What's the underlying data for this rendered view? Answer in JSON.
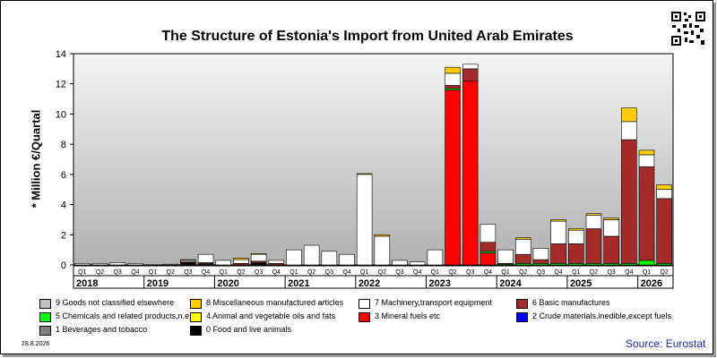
{
  "title": "The Structure of Estonia's Import from United Arab Emirates",
  "ylabel": "* Million €/Quartal",
  "date_stamp": "28.8.2026",
  "source": "Source: Eurostat",
  "qr_icon": "qr-code-icon",
  "chart_data": {
    "type": "bar",
    "stacked": true,
    "ylim": [
      0,
      14
    ],
    "yticks": [
      "0",
      "2",
      "4",
      "6",
      "8",
      "10",
      "12",
      "14"
    ],
    "grid": false,
    "legend_position": "bottom",
    "categories": [
      "Q1",
      "Q2",
      "Q3",
      "Q4",
      "Q1",
      "Q2",
      "Q3",
      "Q4",
      "Q1",
      "Q2",
      "Q3",
      "Q4",
      "Q1",
      "Q2",
      "Q3",
      "Q4",
      "Q1",
      "Q2",
      "Q3",
      "Q4",
      "Q1",
      "Q2",
      "Q3",
      "Q4",
      "Q1",
      "Q2",
      "Q3",
      "Q4",
      "Q1",
      "Q2",
      "Q3",
      "Q4",
      "Q1",
      "Q2"
    ],
    "years": [
      "2018",
      "2019",
      "2020",
      "2021",
      "2022",
      "2023",
      "2024",
      "2025",
      "2026"
    ],
    "series": [
      {
        "name": "0 Food and live animals",
        "color": "#000000",
        "values": [
          0,
          0,
          0,
          0,
          0,
          0,
          0.1,
          0,
          0,
          0,
          0.1,
          0,
          0,
          0,
          0,
          0,
          0,
          0,
          0,
          0,
          0,
          0,
          0,
          0,
          0,
          0,
          0,
          0,
          0,
          0,
          0,
          0,
          0,
          0
        ]
      },
      {
        "name": "1 Beverages and tobacco",
        "color": "#808080",
        "values": [
          0,
          0,
          0,
          0,
          0,
          0,
          0,
          0,
          0,
          0,
          0,
          0,
          0,
          0,
          0,
          0,
          0,
          0,
          0,
          0,
          0,
          0,
          0,
          0,
          0,
          0,
          0,
          0,
          0,
          0,
          0,
          0,
          0,
          0
        ]
      },
      {
        "name": "2 Crude materials,inedible,except fuels",
        "color": "#0000ff",
        "values": [
          0,
          0,
          0,
          0,
          0,
          0,
          0,
          0,
          0,
          0,
          0,
          0,
          0,
          0,
          0,
          0,
          0,
          0,
          0,
          0,
          0,
          0,
          0,
          0,
          0,
          0,
          0,
          0,
          0,
          0,
          0,
          0,
          0,
          0
        ]
      },
      {
        "name": "3 Mineral fuels etc",
        "color": "#ff0000",
        "values": [
          0,
          0,
          0,
          0,
          0,
          0,
          0.05,
          0.05,
          0,
          0,
          0,
          0,
          0,
          0,
          0,
          0,
          0,
          0,
          0,
          0,
          0,
          11.6,
          12.2,
          0.8,
          0,
          0,
          0,
          0,
          0,
          0,
          0,
          0,
          0,
          0
        ]
      },
      {
        "name": "4 Animal and vegetable oils and fats",
        "color": "#ffff00",
        "values": [
          0,
          0,
          0,
          0,
          0,
          0,
          0,
          0,
          0,
          0,
          0,
          0,
          0,
          0,
          0,
          0,
          0,
          0,
          0,
          0,
          0,
          0,
          0,
          0,
          0,
          0,
          0,
          0,
          0,
          0,
          0,
          0,
          0,
          0
        ]
      },
      {
        "name": "5 Chemicals and related products,n.e.s.",
        "color": "#00ff00",
        "values": [
          0,
          0,
          0,
          0,
          0,
          0,
          0,
          0.05,
          0,
          0,
          0.05,
          0,
          0,
          0,
          0,
          0,
          0,
          0,
          0,
          0,
          0,
          0.1,
          0,
          0.1,
          0.05,
          0.1,
          0.1,
          0.1,
          0.1,
          0.1,
          0.1,
          0.1,
          0.3,
          0.1
        ]
      },
      {
        "name": "6 Basic manufactures",
        "color": "#a52a2a",
        "values": [
          0,
          0,
          0,
          0,
          0,
          0,
          0.05,
          0.05,
          0,
          0.1,
          0.1,
          0.1,
          0,
          0,
          0,
          0,
          0,
          0,
          0,
          0,
          0,
          0.2,
          0.8,
          0.6,
          0.05,
          0.6,
          0.25,
          1.3,
          1.3,
          2.3,
          1.8,
          8.2,
          6.2,
          4.3
        ]
      },
      {
        "name": "7 Machinery,transport equipment",
        "color": "#ffffff",
        "values": [
          0.1,
          0.1,
          0.15,
          0.1,
          0,
          0.05,
          0.1,
          0.55,
          0.3,
          0.25,
          0.45,
          0.2,
          1,
          1.3,
          0.9,
          0.7,
          6,
          1.9,
          0.3,
          0.2,
          1,
          0.8,
          0.3,
          1.2,
          0.9,
          1,
          0.75,
          1.5,
          0.9,
          0.9,
          1.1,
          1.2,
          0.8,
          0.6
        ]
      },
      {
        "name": "8 Miscellaneous manufactured articles",
        "color": "#ffcc00",
        "values": [
          0,
          0,
          0,
          0,
          0,
          0,
          0.05,
          0,
          0,
          0.1,
          0.05,
          0,
          0,
          0,
          0,
          0,
          0.05,
          0.1,
          0,
          0,
          0,
          0.4,
          0,
          0,
          0,
          0.1,
          0,
          0.1,
          0.1,
          0.1,
          0.1,
          0.9,
          0.3,
          0.3
        ]
      },
      {
        "name": "9 Goods not classified elsewhere",
        "color": "#c0c0c0",
        "values": [
          0,
          0,
          0,
          0,
          0,
          0,
          0,
          0,
          0,
          0,
          0,
          0,
          0,
          0,
          0,
          0,
          0,
          0,
          0,
          0,
          0,
          0,
          0,
          0,
          0,
          0,
          0,
          0,
          0,
          0,
          0,
          0,
          0,
          0
        ]
      }
    ]
  },
  "legend": [
    {
      "label": "9 Goods not classified elsewhere",
      "color": "#c0c0c0"
    },
    {
      "label": "8 Miscellaneous manufactured articles",
      "color": "#ffcc00"
    },
    {
      "label": "7 Machinery,transport equipment",
      "color": "#ffffff"
    },
    {
      "label": "6 Basic manufactures",
      "color": "#a52a2a"
    },
    {
      "label": "5 Chemicals and related products,n.e.s.",
      "color": "#00ff00"
    },
    {
      "label": "4 Animal and vegetable oils and fats",
      "color": "#ffff00"
    },
    {
      "label": "3 Mineral fuels etc",
      "color": "#ff0000"
    },
    {
      "label": "2 Crude materials,inedible,except fuels",
      "color": "#0000ff"
    },
    {
      "label": "1 Beverages and tobacco",
      "color": "#808080"
    },
    {
      "label": "0 Food and live animals",
      "color": "#000000"
    }
  ]
}
